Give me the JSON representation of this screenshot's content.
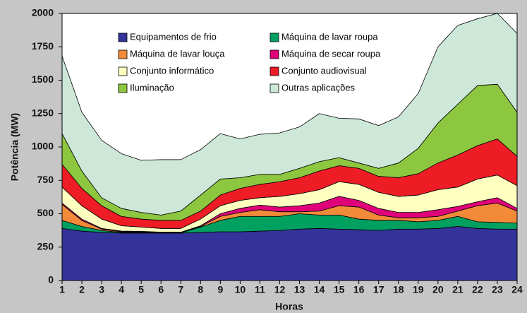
{
  "chart_data": {
    "type": "stacked_area",
    "x_label": "Horas",
    "y_label": "Potência (MW)",
    "x": [
      1,
      2,
      3,
      4,
      5,
      6,
      7,
      8,
      9,
      10,
      11,
      12,
      13,
      14,
      15,
      16,
      17,
      18,
      19,
      20,
      21,
      22,
      23,
      24
    ],
    "xlim": [
      1,
      24
    ],
    "xticks": [
      1,
      2,
      3,
      4,
      5,
      6,
      7,
      8,
      9,
      10,
      11,
      12,
      13,
      14,
      15,
      16,
      17,
      18,
      19,
      20,
      21,
      22,
      23,
      24
    ],
    "ylim": [
      0,
      2000
    ],
    "yticks": [
      0,
      250,
      500,
      750,
      1000,
      1250,
      1500,
      1750,
      2000
    ],
    "series": [
      {
        "name": "Equipamentos de frio",
        "color": "#333399",
        "values": [
          390,
          370,
          360,
          355,
          355,
          355,
          355,
          360,
          365,
          365,
          370,
          375,
          385,
          390,
          385,
          380,
          375,
          385,
          385,
          390,
          405,
          390,
          385,
          385
        ]
      },
      {
        "name": "Máquina de lavar roupa",
        "color": "#00a060",
        "values": [
          60,
          35,
          15,
          5,
          5,
          3,
          3,
          40,
          85,
          115,
          110,
          105,
          115,
          100,
          105,
          80,
          75,
          65,
          55,
          60,
          75,
          50,
          50,
          45
        ]
      },
      {
        "name": "Máquina de lavar louça",
        "color": "#f28a3a",
        "values": [
          120,
          45,
          10,
          5,
          5,
          2,
          2,
          5,
          30,
          30,
          50,
          35,
          15,
          30,
          70,
          90,
          40,
          20,
          30,
          30,
          40,
          120,
          145,
          90
        ]
      },
      {
        "name": "Máquina de secar roupa",
        "color": "#e0007a",
        "values": [
          10,
          10,
          5,
          5,
          3,
          2,
          2,
          5,
          20,
          30,
          35,
          35,
          45,
          60,
          70,
          50,
          50,
          40,
          40,
          50,
          35,
          30,
          40,
          20
        ]
      },
      {
        "name": "Conjunto informático",
        "color": "#ffffc0",
        "values": [
          120,
          100,
          70,
          40,
          32,
          28,
          28,
          50,
          60,
          60,
          55,
          80,
          90,
          100,
          110,
          120,
          120,
          120,
          130,
          150,
          145,
          170,
          170,
          170
        ]
      },
      {
        "name": "Conjunto audiovisual",
        "color": "#ee1c25",
        "values": [
          170,
          130,
          100,
          70,
          60,
          60,
          60,
          60,
          80,
          90,
          100,
          110,
          120,
          140,
          120,
          120,
          120,
          140,
          160,
          200,
          240,
          250,
          270,
          220
        ]
      },
      {
        "name": "Iluminação",
        "color": "#8dc63f",
        "values": [
          230,
          130,
          60,
          60,
          50,
          40,
          70,
          120,
          120,
          80,
          75,
          55,
          70,
          70,
          60,
          40,
          60,
          110,
          190,
          300,
          380,
          450,
          410,
          330
        ]
      },
      {
        "name": "Outras aplicações",
        "color": "#cde8d8",
        "values": [
          580,
          440,
          430,
          410,
          390,
          415,
          385,
          340,
          340,
          290,
          300,
          310,
          310,
          360,
          295,
          330,
          320,
          345,
          410,
          570,
          590,
          500,
          530,
          590
        ]
      }
    ]
  }
}
